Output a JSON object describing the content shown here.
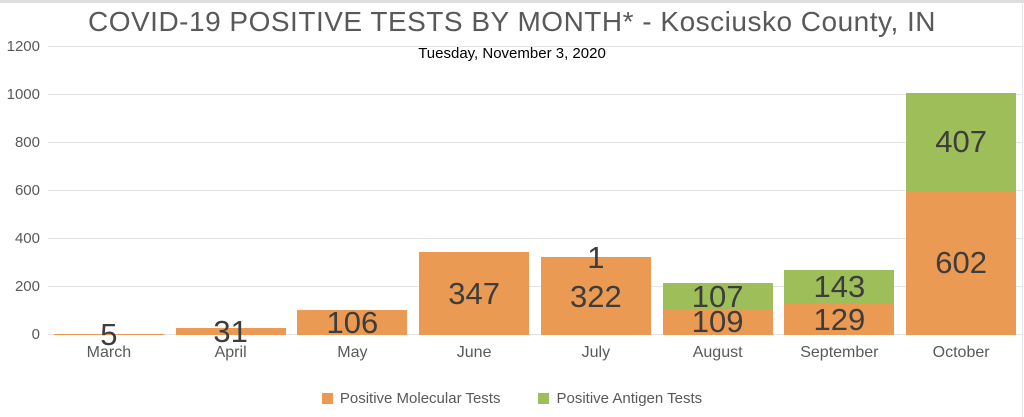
{
  "header": {
    "title": "COVID-19 POSITIVE TESTS BY MONTH* - Kosciusko County, IN",
    "subtitle": "Tuesday, November 3, 2020"
  },
  "chart_data": {
    "type": "bar",
    "stacked": true,
    "title": "COVID-19 POSITIVE TESTS BY MONTH* - Kosciusko County, IN",
    "subtitle": "Tuesday, November 3, 2020",
    "categories": [
      "March",
      "April",
      "May",
      "June",
      "July",
      "August",
      "September",
      "October"
    ],
    "series": [
      {
        "name": "Positive Molecular Tests",
        "key": "molecular",
        "color": "#EA9A52",
        "values": [
          5,
          31,
          106,
          347,
          322,
          109,
          129,
          602
        ]
      },
      {
        "name": "Positive Antigen Tests",
        "key": "antigen",
        "color": "#9DBE59",
        "values": [
          0,
          0,
          0,
          0,
          1,
          107,
          143,
          407
        ]
      }
    ],
    "totals": [
      5,
      31,
      106,
      347,
      323,
      216,
      272,
      1009
    ],
    "xlabel": "",
    "ylabel": "",
    "ylim": [
      0,
      1200
    ],
    "yticks": [
      0,
      200,
      400,
      600,
      800,
      1000,
      1200
    ],
    "grid": true,
    "legend_position": "bottom",
    "data_label_color": "#3d3d3d",
    "axis_label_color": "#595959"
  },
  "legend": {
    "items": [
      {
        "label": "Positive Molecular Tests",
        "color": "#EA9A52"
      },
      {
        "label": "Positive Antigen Tests",
        "color": "#9DBE59"
      }
    ]
  }
}
